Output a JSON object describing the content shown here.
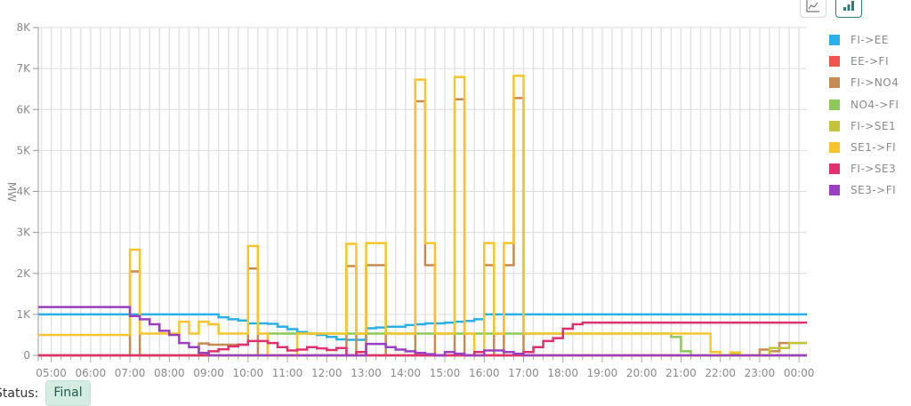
{
  "toolbar": {
    "buttons": [
      {
        "name": "line-chart-button",
        "icon": "line-chart-icon"
      },
      {
        "name": "bar-chart-button",
        "icon": "bar-chart-icon",
        "active": true
      }
    ]
  },
  "status": {
    "label": "Status:",
    "badge": "Final"
  },
  "chart_data": {
    "type": "line",
    "step": true,
    "title": "",
    "xlabel": "",
    "ylabel": "MW",
    "ylim": [
      0,
      8000
    ],
    "yticks": [
      0,
      1000,
      2000,
      3000,
      4000,
      5000,
      6000,
      7000,
      8000
    ],
    "ytick_labels": [
      "0",
      "1K",
      "2K",
      "3K",
      "4K",
      "5K",
      "6K",
      "7K",
      "8K"
    ],
    "xlim_hours": [
      4.67,
      24.2
    ],
    "xtick_labels": [
      "05:00",
      "06:00",
      "07:00",
      "08:00",
      "09:00",
      "10:00",
      "11:00",
      "12:00",
      "13:00",
      "14:00",
      "15:00",
      "16:00",
      "17:00",
      "18:00",
      "19:00",
      "20:00",
      "21:00",
      "22:00",
      "23:00",
      "00:00"
    ],
    "grid": {
      "vertical_every_minutes": 15,
      "horizontal": true
    },
    "legend_position": "right",
    "legend": [
      "FI->EE",
      "EE->FI",
      "FI->NO4",
      "NO4->FI",
      "FI->SE1",
      "SE1->FI",
      "FI->SE3",
      "SE3->FI"
    ],
    "series": [
      {
        "name": "FI->EE",
        "color": "#29b0e8",
        "points": [
          [
            4.67,
            1000
          ],
          [
            9.0,
            1000
          ],
          [
            9.25,
            930
          ],
          [
            9.5,
            880
          ],
          [
            9.75,
            850
          ],
          [
            10.0,
            780
          ],
          [
            10.5,
            770
          ],
          [
            10.75,
            700
          ],
          [
            11.0,
            640
          ],
          [
            11.25,
            570
          ],
          [
            11.5,
            530
          ],
          [
            11.75,
            500
          ],
          [
            12.0,
            450
          ],
          [
            12.25,
            390
          ],
          [
            12.5,
            380
          ],
          [
            13.0,
            660
          ],
          [
            13.25,
            680
          ],
          [
            13.5,
            700
          ],
          [
            14.0,
            740
          ],
          [
            14.25,
            760
          ],
          [
            14.5,
            780
          ],
          [
            15.0,
            800
          ],
          [
            15.25,
            820
          ],
          [
            15.5,
            840
          ],
          [
            15.75,
            880
          ],
          [
            16.0,
            1000
          ],
          [
            24.2,
            1000
          ]
        ]
      },
      {
        "name": "EE->FI",
        "color": "#f2544a",
        "points": [
          [
            4.67,
            0
          ],
          [
            24.2,
            0
          ]
        ]
      },
      {
        "name": "FI->NO4",
        "color": "#c58b52",
        "points": [
          [
            4.67,
            0
          ],
          [
            7.0,
            2050
          ],
          [
            7.25,
            0
          ],
          [
            8.25,
            0
          ],
          [
            8.5,
            0
          ],
          [
            8.75,
            290
          ],
          [
            9.0,
            260
          ],
          [
            10.0,
            2120
          ],
          [
            10.25,
            0
          ],
          [
            12.5,
            2180
          ],
          [
            12.75,
            0
          ],
          [
            13.0,
            2200
          ],
          [
            13.5,
            0
          ],
          [
            14.25,
            6200
          ],
          [
            14.5,
            2200
          ],
          [
            14.75,
            0
          ],
          [
            15.25,
            6250
          ],
          [
            15.5,
            0
          ],
          [
            16.0,
            2200
          ],
          [
            16.25,
            0
          ],
          [
            16.5,
            2200
          ],
          [
            16.75,
            6280
          ],
          [
            17.0,
            0
          ],
          [
            23.0,
            140
          ],
          [
            23.25,
            100
          ],
          [
            23.5,
            300
          ],
          [
            23.75,
            300
          ],
          [
            24.2,
            300
          ]
        ]
      },
      {
        "name": "NO4->FI",
        "color": "#8dc85a",
        "points": [
          [
            4.67,
            0
          ],
          [
            10.5,
            530
          ],
          [
            11.5,
            530
          ],
          [
            12.0,
            530
          ],
          [
            15.75,
            530
          ],
          [
            16.0,
            530
          ],
          [
            17.0,
            530
          ],
          [
            20.75,
            450
          ],
          [
            21.0,
            100
          ],
          [
            21.25,
            0
          ],
          [
            22.25,
            30
          ],
          [
            22.5,
            0
          ],
          [
            23.0,
            0
          ],
          [
            24.2,
            0
          ]
        ]
      },
      {
        "name": "FI->SE1",
        "color": "#c4c43a",
        "points": [
          [
            4.67,
            0
          ],
          [
            22.75,
            0
          ],
          [
            23.25,
            180
          ],
          [
            23.5,
            180
          ],
          [
            23.75,
            300
          ],
          [
            24.2,
            300
          ]
        ]
      },
      {
        "name": "SE1->FI",
        "color": "#f7c52b",
        "points": [
          [
            4.67,
            500
          ],
          [
            7.0,
            2580
          ],
          [
            7.25,
            530
          ],
          [
            8.25,
            820
          ],
          [
            8.5,
            530
          ],
          [
            8.75,
            820
          ],
          [
            9.0,
            760
          ],
          [
            9.25,
            530
          ],
          [
            10.0,
            2670
          ],
          [
            10.25,
            530
          ],
          [
            10.5,
            0
          ],
          [
            11.25,
            530
          ],
          [
            12.5,
            2720
          ],
          [
            12.75,
            530
          ],
          [
            13.0,
            2740
          ],
          [
            13.5,
            530
          ],
          [
            14.25,
            6730
          ],
          [
            14.5,
            2740
          ],
          [
            14.75,
            530
          ],
          [
            15.25,
            6790
          ],
          [
            15.5,
            530
          ],
          [
            15.75,
            0
          ],
          [
            16.0,
            2740
          ],
          [
            16.25,
            530
          ],
          [
            16.5,
            2740
          ],
          [
            16.75,
            6820
          ],
          [
            17.0,
            530
          ],
          [
            21.75,
            80
          ],
          [
            22.0,
            0
          ],
          [
            22.25,
            70
          ],
          [
            22.5,
            0
          ],
          [
            23.0,
            0
          ]
        ]
      },
      {
        "name": "FI->SE3",
        "color": "#e0306e",
        "points": [
          [
            4.67,
            0
          ],
          [
            8.75,
            0
          ],
          [
            9.0,
            100
          ],
          [
            9.25,
            150
          ],
          [
            9.5,
            220
          ],
          [
            9.75,
            260
          ],
          [
            10.0,
            350
          ],
          [
            10.5,
            300
          ],
          [
            10.75,
            200
          ],
          [
            11.0,
            120
          ],
          [
            11.25,
            140
          ],
          [
            11.5,
            200
          ],
          [
            11.75,
            170
          ],
          [
            12.0,
            130
          ],
          [
            12.25,
            180
          ],
          [
            12.5,
            0
          ],
          [
            12.75,
            80
          ],
          [
            13.0,
            0
          ],
          [
            15.75,
            80
          ],
          [
            16.0,
            0
          ],
          [
            17.0,
            80
          ],
          [
            17.25,
            200
          ],
          [
            17.5,
            350
          ],
          [
            17.75,
            420
          ],
          [
            18.0,
            650
          ],
          [
            18.25,
            760
          ],
          [
            18.5,
            800
          ],
          [
            24.2,
            800
          ]
        ]
      },
      {
        "name": "SE3->FI",
        "color": "#9b3ec0",
        "points": [
          [
            4.67,
            1180
          ],
          [
            7.0,
            960
          ],
          [
            7.25,
            880
          ],
          [
            7.5,
            760
          ],
          [
            7.75,
            600
          ],
          [
            8.0,
            500
          ],
          [
            8.25,
            300
          ],
          [
            8.5,
            200
          ],
          [
            8.75,
            60
          ],
          [
            9.0,
            0
          ],
          [
            13.0,
            280
          ],
          [
            13.5,
            200
          ],
          [
            13.75,
            140
          ],
          [
            14.0,
            100
          ],
          [
            14.25,
            60
          ],
          [
            14.5,
            30
          ],
          [
            14.75,
            0
          ],
          [
            15.0,
            80
          ],
          [
            15.25,
            40
          ],
          [
            15.5,
            0
          ],
          [
            16.0,
            120
          ],
          [
            16.5,
            80
          ],
          [
            16.75,
            40
          ],
          [
            17.0,
            0
          ],
          [
            24.2,
            0
          ]
        ]
      }
    ]
  }
}
